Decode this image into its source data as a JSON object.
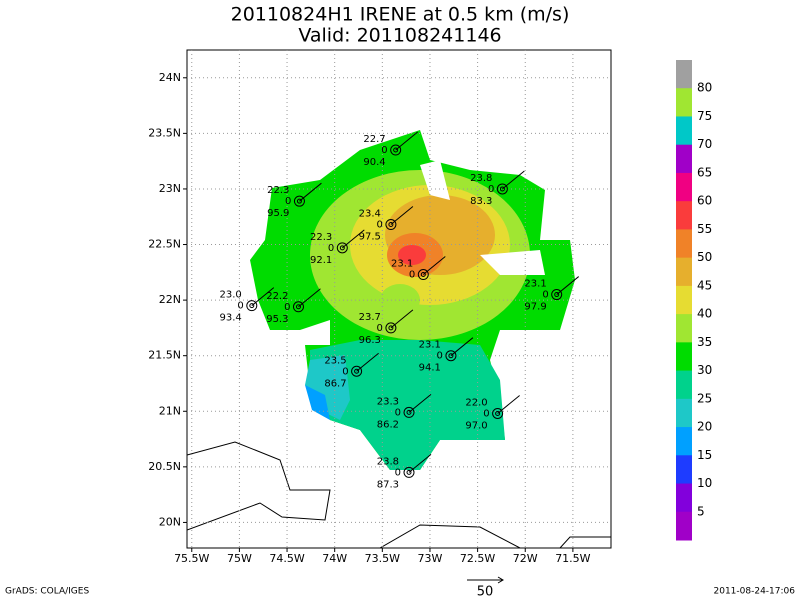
{
  "header": {
    "title": "20110824H1 IRENE at 0.5 km (m/s)",
    "subtitle": "Valid: 201108241146"
  },
  "map": {
    "lonlim": [
      -75.55,
      -71.1
    ],
    "latlim": [
      24.25,
      19.77
    ],
    "lonticks": [
      {
        "value": -75.5,
        "label": "75.5W"
      },
      {
        "value": -75,
        "label": "75W"
      },
      {
        "value": -74.5,
        "label": "74.5W"
      },
      {
        "value": -74,
        "label": "74W"
      },
      {
        "value": -73.5,
        "label": "73.5W"
      },
      {
        "value": -73,
        "label": "73W"
      },
      {
        "value": -72.5,
        "label": "72.5W"
      },
      {
        "value": -72,
        "label": "72W"
      },
      {
        "value": -71.5,
        "label": "71.5W"
      }
    ],
    "latticks": [
      {
        "value": 24,
        "label": "24N"
      },
      {
        "value": 23.5,
        "label": "23.5N"
      },
      {
        "value": 23,
        "label": "23N"
      },
      {
        "value": 22.5,
        "label": "22.5N"
      },
      {
        "value": 22,
        "label": "22N"
      },
      {
        "value": 21.5,
        "label": "21.5N"
      },
      {
        "value": 21,
        "label": "21N"
      },
      {
        "value": 20.5,
        "label": "20.5N"
      },
      {
        "value": 20,
        "label": "20N"
      }
    ],
    "stations": [
      {
        "lon": -73.36,
        "lat": 23.35,
        "temp": "22.7",
        "dir": "0",
        "rh": "90.4"
      },
      {
        "lon": -72.24,
        "lat": 23.0,
        "temp": "23.8",
        "dir": "0",
        "rh": "83.3"
      },
      {
        "lon": -74.37,
        "lat": 22.89,
        "temp": "22.3",
        "dir": "0",
        "rh": "95.9"
      },
      {
        "lon": -73.41,
        "lat": 22.68,
        "temp": "23.4",
        "dir": "0",
        "rh": "97.5"
      },
      {
        "lon": -73.92,
        "lat": 22.47,
        "temp": "22.3",
        "dir": "0",
        "rh": "92.1"
      },
      {
        "lon": -73.07,
        "lat": 22.23,
        "temp": "23.1",
        "dir": "0"
      },
      {
        "lon": -74.87,
        "lat": 21.95,
        "temp": "23.0",
        "dir": "0",
        "rh": "93.4"
      },
      {
        "lon": -74.38,
        "lat": 21.94,
        "temp": "22.2",
        "dir": "0",
        "rh": "95.3"
      },
      {
        "lon": -73.41,
        "lat": 21.75,
        "temp": "23.7",
        "dir": "0",
        "rh": "96.3"
      },
      {
        "lon": -71.67,
        "lat": 22.05,
        "temp": "23.1",
        "dir": "0",
        "rh": "97.9"
      },
      {
        "lon": -72.78,
        "lat": 21.5,
        "temp": "23.1",
        "dir": "0",
        "rh": "94.1"
      },
      {
        "lon": -73.77,
        "lat": 21.36,
        "temp": "23.5",
        "dir": "0",
        "rh": "86.7"
      },
      {
        "lon": -73.22,
        "lat": 20.99,
        "temp": "23.3",
        "dir": "0",
        "rh": "86.2"
      },
      {
        "lon": -72.29,
        "lat": 20.98,
        "temp": "22.0",
        "dir": "0",
        "rh": "97.0"
      },
      {
        "lon": -73.22,
        "lat": 20.45,
        "temp": "23.8",
        "dir": "0",
        "rh": "87.3"
      }
    ]
  },
  "colorbar": {
    "colors": [
      "#a0a0a0",
      "#a0e632",
      "#00c8c8",
      "#a000c8",
      "#f00082",
      "#fa3c3c",
      "#f08228",
      "#e6af2d",
      "#e6dc32",
      "#a0e632",
      "#00dc00",
      "#00d28c",
      "#1ec8c8",
      "#00a0ff",
      "#1e3cff",
      "#8200dc",
      "#a000c8"
    ],
    "levels": [
      80,
      75,
      70,
      65,
      60,
      55,
      50,
      45,
      40,
      35,
      30,
      25,
      20,
      15,
      10,
      5
    ]
  },
  "footer": {
    "left": "GrADS: COLA/IGES",
    "scale": "50",
    "right": "2011-08-24-17:06"
  }
}
